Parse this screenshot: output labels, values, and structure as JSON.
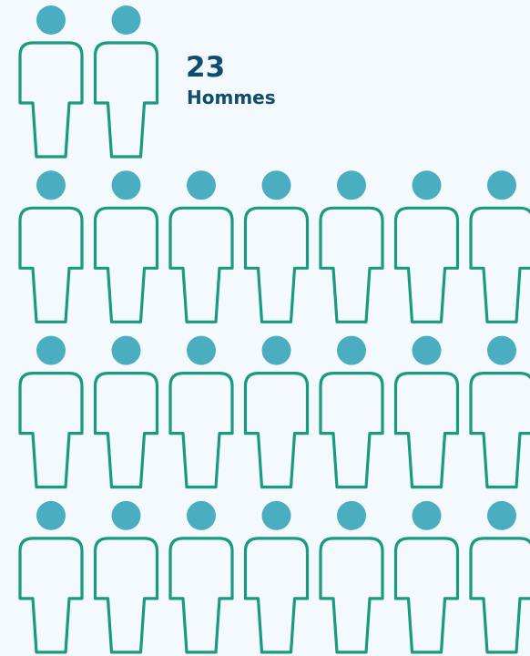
{
  "chart_data": {
    "type": "pictograph",
    "value": 23,
    "label": "Hommes",
    "head_color": "#4aaec0",
    "body_color": "#1a9a80"
  }
}
